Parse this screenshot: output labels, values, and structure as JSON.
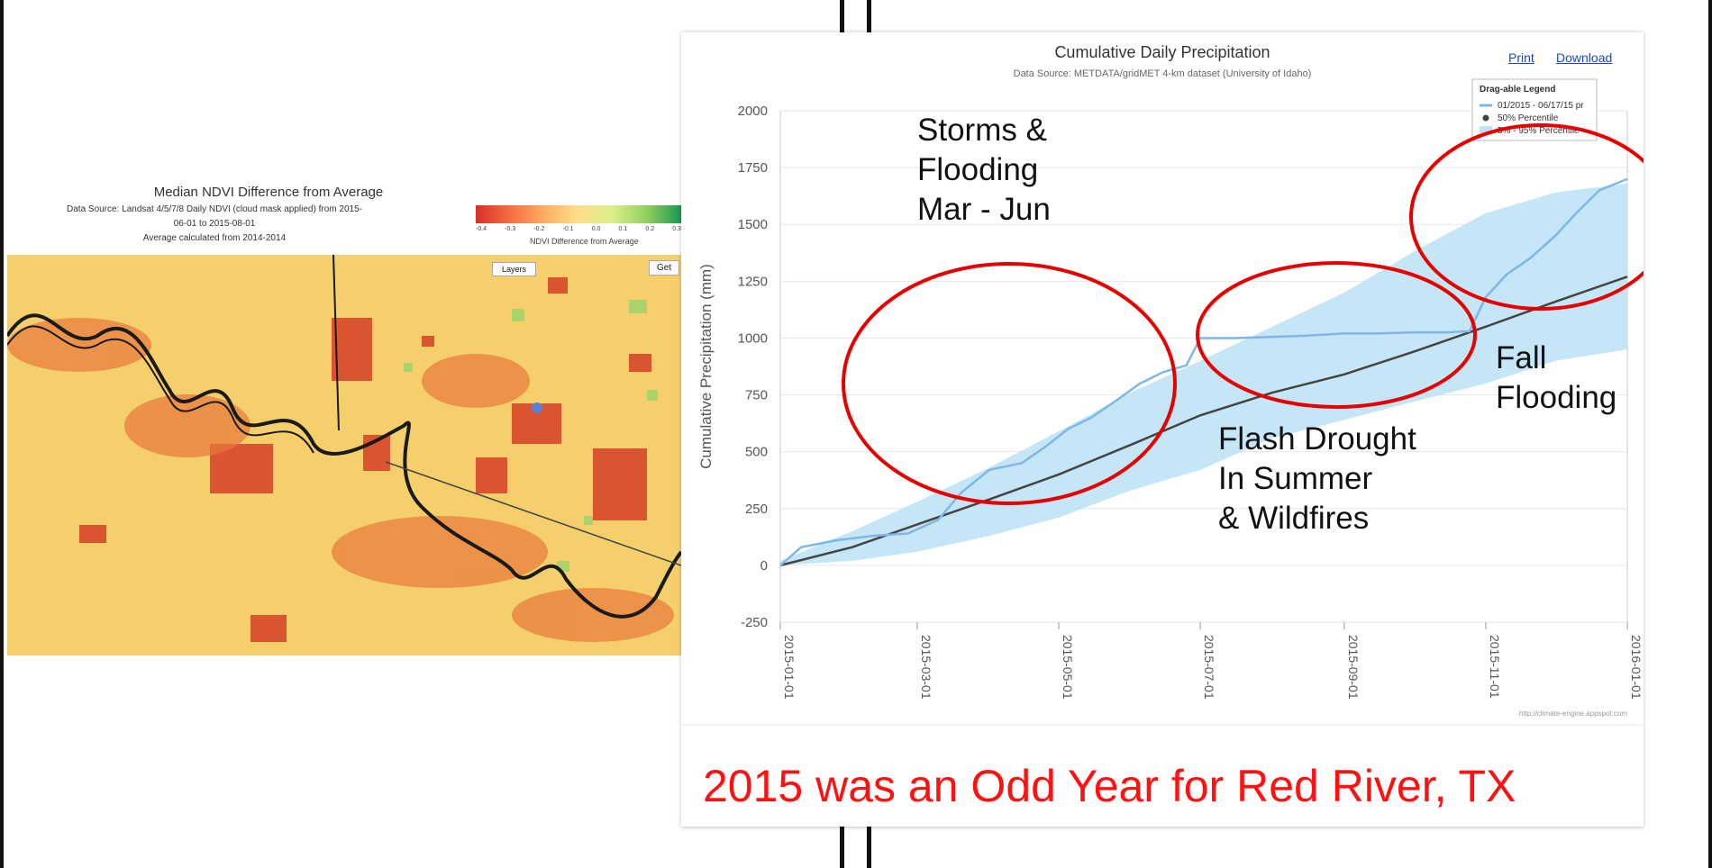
{
  "map": {
    "title": "Median NDVI Difference from Average",
    "source_line1": "Data Source: Landsat 4/5/7/8 Daily NDVI (cloud mask applied) from 2015-",
    "source_line2": "06-01 to 2015-08-01",
    "source_line3": "Average calculated from 2014-2014",
    "colorbar_ticks": [
      "-0.4",
      "-0.3",
      "-0.2",
      "-0.1",
      "0.0",
      "0.1",
      "0.2",
      "0.3"
    ],
    "colorbar_label": "NDVI Difference from Average",
    "layers_button": "Layers",
    "get_button": "Get"
  },
  "chart": {
    "title": "Cumulative Daily Precipitation",
    "subtitle": "Data Source: METDATA/gridMET 4-km dataset (University of Idaho)",
    "print_label": "Print",
    "download_label": "Download",
    "footer": "http://climate-engine.appspot.com",
    "legend": {
      "title": "Drag-able Legend",
      "entries": [
        "01/2015 - 06/17/15 pr",
        "50% Percentile",
        "5% - 95% Percentile"
      ]
    },
    "annotations": {
      "storms": "Storms &\nFlooding\nMar - Jun",
      "drought": "Flash Drought\nIn Summer\n& Wildfires",
      "fall": "Fall\nFlooding"
    },
    "colors": {
      "series_2015": "#7fb6e6",
      "median": "#444444",
      "band": "#bfe3f5",
      "ellipse": "#e60000"
    }
  },
  "chart_data": {
    "type": "line",
    "title": "Cumulative Daily Precipitation",
    "subtitle": "Data Source: METDATA/gridMET 4-km dataset (University of Idaho)",
    "ylabel": "Cumulative Precipitation (mm)",
    "xlabel": "",
    "ylim": [
      -250,
      2000
    ],
    "yticks": [
      -250,
      0,
      250,
      500,
      750,
      1000,
      1250,
      1500,
      1750,
      2000
    ],
    "xlim": [
      "2015-01-01",
      "2016-01-01"
    ],
    "xticks": [
      "2015-01-01",
      "2015-03-01",
      "2015-05-01",
      "2015-07-01",
      "2015-09-01",
      "2015-11-01",
      "2016-01-01"
    ],
    "grid": true,
    "legend_position": "top-right",
    "series": [
      {
        "name": "01/2015 - 06/17/15 pr",
        "x": [
          "2015-01-01",
          "2015-01-10",
          "2015-01-25",
          "2015-02-10",
          "2015-02-25",
          "2015-03-10",
          "2015-03-20",
          "2015-04-01",
          "2015-04-15",
          "2015-04-25",
          "2015-05-05",
          "2015-05-15",
          "2015-05-25",
          "2015-06-05",
          "2015-06-15",
          "2015-06-25",
          "2015-07-01",
          "2015-07-15",
          "2015-08-01",
          "2015-08-15",
          "2015-09-01",
          "2015-09-15",
          "2015-10-01",
          "2015-10-15",
          "2015-10-25",
          "2015-11-01",
          "2015-11-10",
          "2015-11-20",
          "2015-12-01",
          "2015-12-10",
          "2015-12-20",
          "2016-01-01"
        ],
        "values": [
          0,
          80,
          110,
          130,
          140,
          200,
          320,
          420,
          450,
          520,
          600,
          650,
          720,
          800,
          850,
          880,
          1000,
          1000,
          1005,
          1010,
          1020,
          1020,
          1025,
          1025,
          1030,
          1180,
          1280,
          1350,
          1450,
          1550,
          1650,
          1700
        ]
      },
      {
        "name": "50% Percentile",
        "x": [
          "2015-01-01",
          "2015-02-01",
          "2015-03-01",
          "2015-04-01",
          "2015-05-01",
          "2015-06-01",
          "2015-07-01",
          "2015-08-01",
          "2015-09-01",
          "2015-10-01",
          "2015-11-01",
          "2015-12-01",
          "2016-01-01"
        ],
        "values": [
          0,
          80,
          180,
          290,
          400,
          530,
          660,
          760,
          840,
          940,
          1050,
          1160,
          1270
        ]
      },
      {
        "name": "5% - 95% Percentile",
        "x": [
          "2015-01-01",
          "2015-02-01",
          "2015-03-01",
          "2015-04-01",
          "2015-05-01",
          "2015-06-01",
          "2015-07-01",
          "2015-08-01",
          "2015-09-01",
          "2015-10-01",
          "2015-11-01",
          "2015-12-01",
          "2016-01-01"
        ],
        "lower": [
          0,
          20,
          60,
          130,
          210,
          330,
          420,
          560,
          640,
          720,
          800,
          900,
          950
        ],
        "upper": [
          20,
          150,
          280,
          430,
          590,
          760,
          900,
          1050,
          1200,
          1380,
          1550,
          1640,
          1680
        ]
      }
    ]
  },
  "caption": {
    "text": "2015 was an  Odd Year for Red River, TX"
  }
}
